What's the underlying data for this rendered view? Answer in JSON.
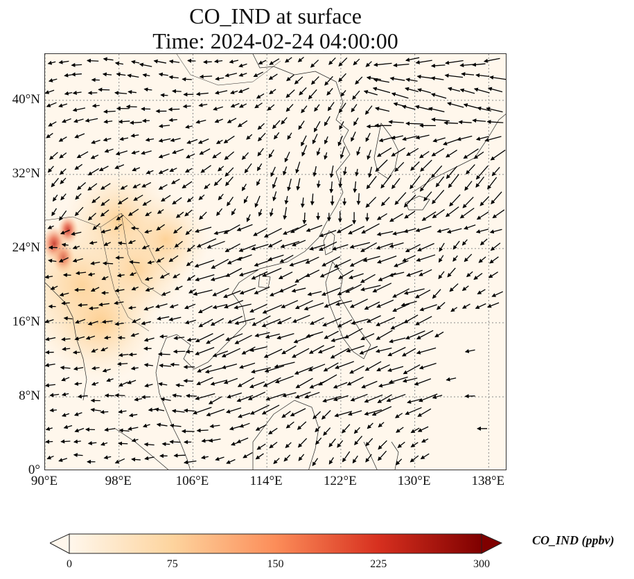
{
  "title": {
    "line1": "CO_IND at surface",
    "line2": "Time: 2024-02-24 04:00:00"
  },
  "map": {
    "lon_range": [
      90,
      140
    ],
    "lat_range": [
      0,
      45
    ],
    "lat_ticks": [
      {
        "value": 0,
        "label": "0°"
      },
      {
        "value": 8,
        "label": "8°N"
      },
      {
        "value": 16,
        "label": "16°N"
      },
      {
        "value": 24,
        "label": "24°N"
      },
      {
        "value": 32,
        "label": "32°N"
      },
      {
        "value": 40,
        "label": "40°N"
      }
    ],
    "lon_ticks": [
      {
        "value": 90,
        "label": "90°E"
      },
      {
        "value": 98,
        "label": "98°E"
      },
      {
        "value": 106,
        "label": "106°E"
      },
      {
        "value": 114,
        "label": "114°E"
      },
      {
        "value": 122,
        "label": "122°E"
      },
      {
        "value": 130,
        "label": "130°E"
      },
      {
        "value": 138,
        "label": "138°E"
      }
    ],
    "gridlines": "dotted",
    "background_color": "#fff7ec",
    "coastline_color": "#222222",
    "arrow_color": "#000000",
    "hotspots": [
      {
        "lon": 91.0,
        "lat": 24.5,
        "value": 290
      },
      {
        "lon": 92.0,
        "lat": 23.0,
        "value": 230
      },
      {
        "lon": 92.5,
        "lat": 26.0,
        "value": 190
      },
      {
        "lon": 94.0,
        "lat": 20.0,
        "value": 70
      },
      {
        "lon": 96.0,
        "lat": 16.0,
        "value": 45
      },
      {
        "lon": 100.0,
        "lat": 22.0,
        "value": 35
      },
      {
        "lon": 103.0,
        "lat": 25.0,
        "value": 25
      },
      {
        "lon": 98.0,
        "lat": 27.0,
        "value": 40
      }
    ]
  },
  "colorbar": {
    "label": "CO_IND (ppbv)",
    "min": 0,
    "max": 300,
    "ticks": [
      "0",
      "75",
      "150",
      "225",
      "300"
    ],
    "colors": [
      "#fff7ec",
      "#fdd49e",
      "#fc8d59",
      "#d7301f",
      "#7f0000"
    ]
  }
}
